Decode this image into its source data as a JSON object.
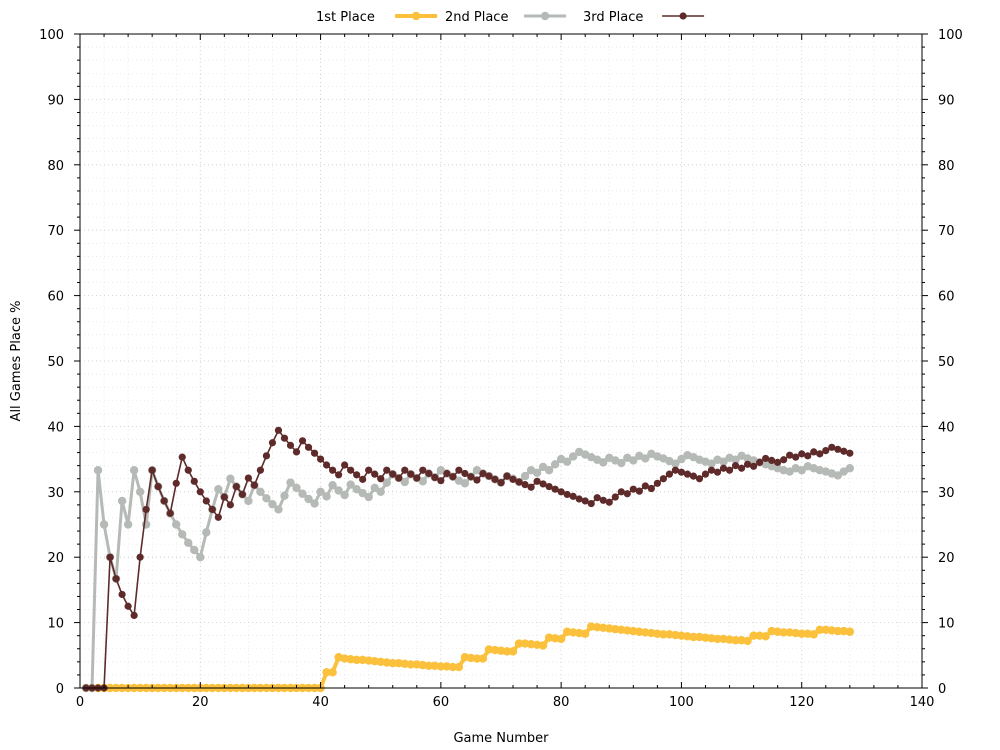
{
  "chart_data": {
    "type": "line",
    "title": "",
    "xlabel": "Game Number",
    "ylabel": "All Games Place %",
    "xlim": [
      0,
      140
    ],
    "ylim": [
      0,
      100
    ],
    "x_ticks": [
      "0",
      "20",
      "40",
      "60",
      "80",
      "100",
      "120",
      "140"
    ],
    "y_ticks": [
      "0",
      "10",
      "20",
      "30",
      "40",
      "50",
      "60",
      "70",
      "80",
      "90",
      "100"
    ],
    "y2_ticks": [
      "0",
      "10",
      "20",
      "30",
      "40",
      "50",
      "60",
      "70",
      "80",
      "90",
      "100"
    ],
    "grid": true,
    "legend_position": "top",
    "series": [
      {
        "name": "1st Place",
        "color": "#fbc13c",
        "x": [
          1,
          2,
          3,
          4,
          5,
          6,
          7,
          8,
          9,
          10,
          11,
          12,
          13,
          14,
          15,
          16,
          17,
          18,
          19,
          20,
          21,
          22,
          23,
          24,
          25,
          26,
          27,
          28,
          29,
          30,
          31,
          32,
          33,
          34,
          35,
          36,
          37,
          38,
          39,
          40,
          41,
          42,
          43,
          44,
          45,
          46,
          47,
          48,
          49,
          50,
          51,
          52,
          53,
          54,
          55,
          56,
          57,
          58,
          59,
          60,
          61,
          62,
          63,
          64,
          65,
          66,
          67,
          68,
          69,
          70,
          71,
          72,
          73,
          74,
          75,
          76,
          77,
          78,
          79,
          80,
          81,
          82,
          83,
          84,
          85,
          86,
          87,
          88,
          89,
          90,
          91,
          92,
          93,
          94,
          95,
          96,
          97,
          98,
          99,
          100,
          101,
          102,
          103,
          104,
          105,
          106,
          107,
          108,
          109,
          110,
          111,
          112,
          113,
          114,
          115,
          116,
          117,
          118,
          119,
          120,
          121,
          122,
          123,
          124,
          125,
          126,
          127,
          128
        ],
        "values": [
          0,
          0,
          0,
          0,
          0,
          0,
          0,
          0,
          0,
          0,
          0,
          0,
          0,
          0,
          0,
          0,
          0,
          0,
          0,
          0,
          0,
          0,
          0,
          0,
          0,
          0,
          0,
          0,
          0,
          0,
          0,
          0,
          0,
          0,
          0,
          0,
          0,
          0,
          0,
          0,
          2.4,
          2.4,
          4.7,
          4.5,
          4.4,
          4.3,
          4.3,
          4.2,
          4.1,
          4.0,
          3.9,
          3.8,
          3.8,
          3.7,
          3.6,
          3.6,
          3.5,
          3.4,
          3.4,
          3.3,
          3.3,
          3.2,
          3.2,
          4.7,
          4.6,
          4.5,
          4.5,
          5.9,
          5.8,
          5.7,
          5.6,
          5.6,
          6.8,
          6.8,
          6.7,
          6.6,
          6.5,
          7.7,
          7.6,
          7.5,
          8.6,
          8.5,
          8.4,
          8.3,
          9.4,
          9.3,
          9.2,
          9.1,
          9.0,
          8.9,
          8.8,
          8.7,
          8.6,
          8.5,
          8.4,
          8.3,
          8.2,
          8.2,
          8.1,
          8.0,
          7.9,
          7.8,
          7.8,
          7.7,
          7.6,
          7.5,
          7.5,
          7.4,
          7.3,
          7.3,
          7.2,
          8.0,
          8.0,
          7.9,
          8.7,
          8.6,
          8.5,
          8.5,
          8.4,
          8.3,
          8.3,
          8.2,
          8.9,
          8.9,
          8.8,
          8.7,
          8.7,
          8.6
        ]
      },
      {
        "name": "2nd Place",
        "color": "#b6bab6",
        "x": [
          1,
          2,
          3,
          4,
          5,
          6,
          7,
          8,
          9,
          10,
          11,
          12,
          13,
          14,
          15,
          16,
          17,
          18,
          19,
          20,
          21,
          22,
          23,
          24,
          25,
          26,
          27,
          28,
          29,
          30,
          31,
          32,
          33,
          34,
          35,
          36,
          37,
          38,
          39,
          40,
          41,
          42,
          43,
          44,
          45,
          46,
          47,
          48,
          49,
          50,
          51,
          52,
          53,
          54,
          55,
          56,
          57,
          58,
          59,
          60,
          61,
          62,
          63,
          64,
          65,
          66,
          67,
          68,
          69,
          70,
          71,
          72,
          73,
          74,
          75,
          76,
          77,
          78,
          79,
          80,
          81,
          82,
          83,
          84,
          85,
          86,
          87,
          88,
          89,
          90,
          91,
          92,
          93,
          94,
          95,
          96,
          97,
          98,
          99,
          100,
          101,
          102,
          103,
          104,
          105,
          106,
          107,
          108,
          109,
          110,
          111,
          112,
          113,
          114,
          115,
          116,
          117,
          118,
          119,
          120,
          121,
          122,
          123,
          124,
          125,
          126,
          127,
          128
        ],
        "values": [
          0,
          0,
          33.3,
          25.0,
          20.0,
          16.7,
          28.6,
          25.0,
          33.3,
          30.0,
          25.0,
          33.3,
          30.8,
          28.6,
          26.7,
          25.0,
          23.5,
          22.2,
          21.1,
          20.0,
          23.8,
          27.3,
          30.4,
          29.2,
          32.0,
          30.8,
          29.6,
          28.6,
          31.0,
          30.0,
          29.0,
          28.1,
          27.3,
          29.4,
          31.4,
          30.6,
          29.7,
          28.9,
          28.2,
          30.0,
          29.3,
          31.0,
          30.2,
          29.5,
          31.1,
          30.4,
          29.8,
          29.2,
          30.6,
          30.0,
          31.4,
          32.7,
          32.1,
          31.5,
          32.7,
          32.1,
          31.6,
          32.8,
          32.2,
          33.3,
          32.8,
          32.3,
          31.7,
          31.3,
          32.3,
          33.3,
          32.8,
          32.4,
          31.9,
          31.4,
          32.4,
          32.0,
          31.5,
          32.4,
          33.3,
          32.9,
          33.8,
          33.3,
          34.2,
          35.0,
          34.6,
          35.4,
          36.1,
          35.7,
          35.3,
          34.9,
          34.5,
          35.2,
          34.8,
          34.4,
          35.2,
          34.8,
          35.5,
          35.1,
          35.8,
          35.4,
          35.1,
          34.7,
          34.3,
          35.0,
          35.6,
          35.3,
          34.9,
          34.6,
          34.3,
          34.9,
          34.6,
          35.2,
          34.9,
          35.5,
          35.1,
          34.8,
          34.5,
          34.2,
          33.9,
          33.6,
          33.3,
          33.1,
          33.6,
          33.3,
          33.9,
          33.6,
          33.3,
          33.1,
          32.8,
          32.5,
          33.1,
          33.6
        ]
      },
      {
        "name": "3rd Place",
        "color": "#5e2a2a",
        "x": [
          1,
          2,
          3,
          4,
          5,
          6,
          7,
          8,
          9,
          10,
          11,
          12,
          13,
          14,
          15,
          16,
          17,
          18,
          19,
          20,
          21,
          22,
          23,
          24,
          25,
          26,
          27,
          28,
          29,
          30,
          31,
          32,
          33,
          34,
          35,
          36,
          37,
          38,
          39,
          40,
          41,
          42,
          43,
          44,
          45,
          46,
          47,
          48,
          49,
          50,
          51,
          52,
          53,
          54,
          55,
          56,
          57,
          58,
          59,
          60,
          61,
          62,
          63,
          64,
          65,
          66,
          67,
          68,
          69,
          70,
          71,
          72,
          73,
          74,
          75,
          76,
          77,
          78,
          79,
          80,
          81,
          82,
          83,
          84,
          85,
          86,
          87,
          88,
          89,
          90,
          91,
          92,
          93,
          94,
          95,
          96,
          97,
          98,
          99,
          100,
          101,
          102,
          103,
          104,
          105,
          106,
          107,
          108,
          109,
          110,
          111,
          112,
          113,
          114,
          115,
          116,
          117,
          118,
          119,
          120,
          121,
          122,
          123,
          124,
          125,
          126,
          127,
          128
        ],
        "values": [
          0,
          0,
          0,
          0,
          20.0,
          16.7,
          14.3,
          12.5,
          11.1,
          20.0,
          27.3,
          33.3,
          30.8,
          28.6,
          26.7,
          31.3,
          35.3,
          33.3,
          31.6,
          30.0,
          28.6,
          27.3,
          26.1,
          29.2,
          28.0,
          30.8,
          29.6,
          32.1,
          31.0,
          33.3,
          35.5,
          37.5,
          39.4,
          38.2,
          37.1,
          36.1,
          37.8,
          36.8,
          35.9,
          35.0,
          34.1,
          33.3,
          32.6,
          34.1,
          33.3,
          32.6,
          31.9,
          33.3,
          32.7,
          32.0,
          33.3,
          32.7,
          32.1,
          33.3,
          32.7,
          32.1,
          33.3,
          32.8,
          32.2,
          31.7,
          32.8,
          32.3,
          33.3,
          32.8,
          32.3,
          31.8,
          32.8,
          32.4,
          31.9,
          31.4,
          32.4,
          31.9,
          31.5,
          31.1,
          30.7,
          31.6,
          31.2,
          30.8,
          30.4,
          30.0,
          29.6,
          29.3,
          28.9,
          28.6,
          28.2,
          29.1,
          28.7,
          28.4,
          29.2,
          30.0,
          29.7,
          30.4,
          30.1,
          30.9,
          30.5,
          31.3,
          32.0,
          32.7,
          33.3,
          33.0,
          32.7,
          32.4,
          32.0,
          32.7,
          33.3,
          33.0,
          33.6,
          33.3,
          34.0,
          33.6,
          34.2,
          33.9,
          34.5,
          35.1,
          34.8,
          34.5,
          34.9,
          35.6,
          35.3,
          35.8,
          35.5,
          36.1,
          35.8,
          36.3,
          36.8,
          36.5,
          36.2,
          35.9
        ]
      }
    ]
  }
}
